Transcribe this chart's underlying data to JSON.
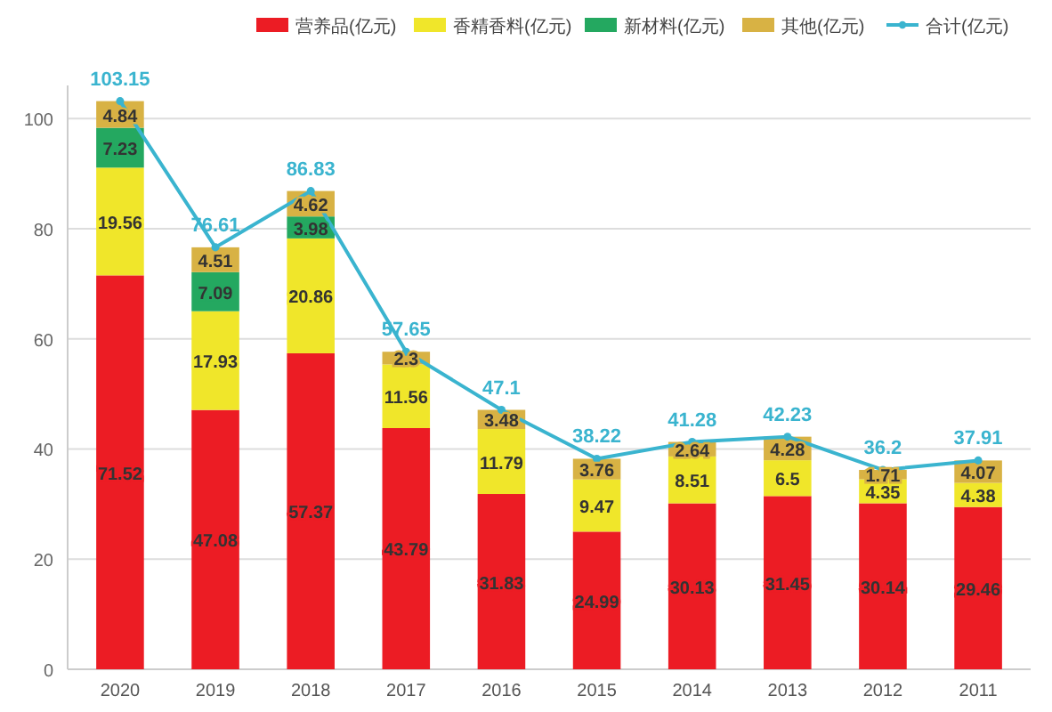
{
  "chart_data": {
    "type": "bar",
    "stacked": true,
    "categories": [
      "2020",
      "2019",
      "2018",
      "2017",
      "2016",
      "2015",
      "2014",
      "2013",
      "2012",
      "2011"
    ],
    "series": [
      {
        "name": "营养品(亿元)",
        "color": "#ec1c24",
        "values": [
          71.52,
          47.08,
          57.37,
          43.79,
          31.83,
          24.99,
          30.13,
          31.45,
          30.14,
          29.46
        ]
      },
      {
        "name": "香精香料(亿元)",
        "color": "#f0e62a",
        "values": [
          19.56,
          17.93,
          20.86,
          11.56,
          11.79,
          9.47,
          8.51,
          6.5,
          4.35,
          4.38
        ]
      },
      {
        "name": "新材料(亿元)",
        "color": "#24a860",
        "values": [
          7.23,
          7.09,
          3.98,
          null,
          null,
          null,
          null,
          null,
          null,
          null
        ]
      },
      {
        "name": "其他(亿元)",
        "color": "#d8b244",
        "values": [
          4.84,
          4.51,
          4.62,
          2.3,
          3.48,
          3.76,
          2.64,
          4.28,
          1.71,
          4.07
        ]
      },
      {
        "name": "合计(亿元)",
        "type": "line",
        "color": "#3ab4cf",
        "values": [
          103.15,
          76.61,
          86.83,
          57.65,
          47.1,
          38.22,
          41.28,
          42.23,
          36.2,
          37.91
        ]
      }
    ],
    "ylim": [
      0,
      106
    ],
    "yticks": [
      0,
      20,
      40,
      60,
      80,
      100
    ],
    "grid": "y",
    "legend": "top right",
    "data_labels": true,
    "marker": "circle",
    "line_style": "solid"
  }
}
